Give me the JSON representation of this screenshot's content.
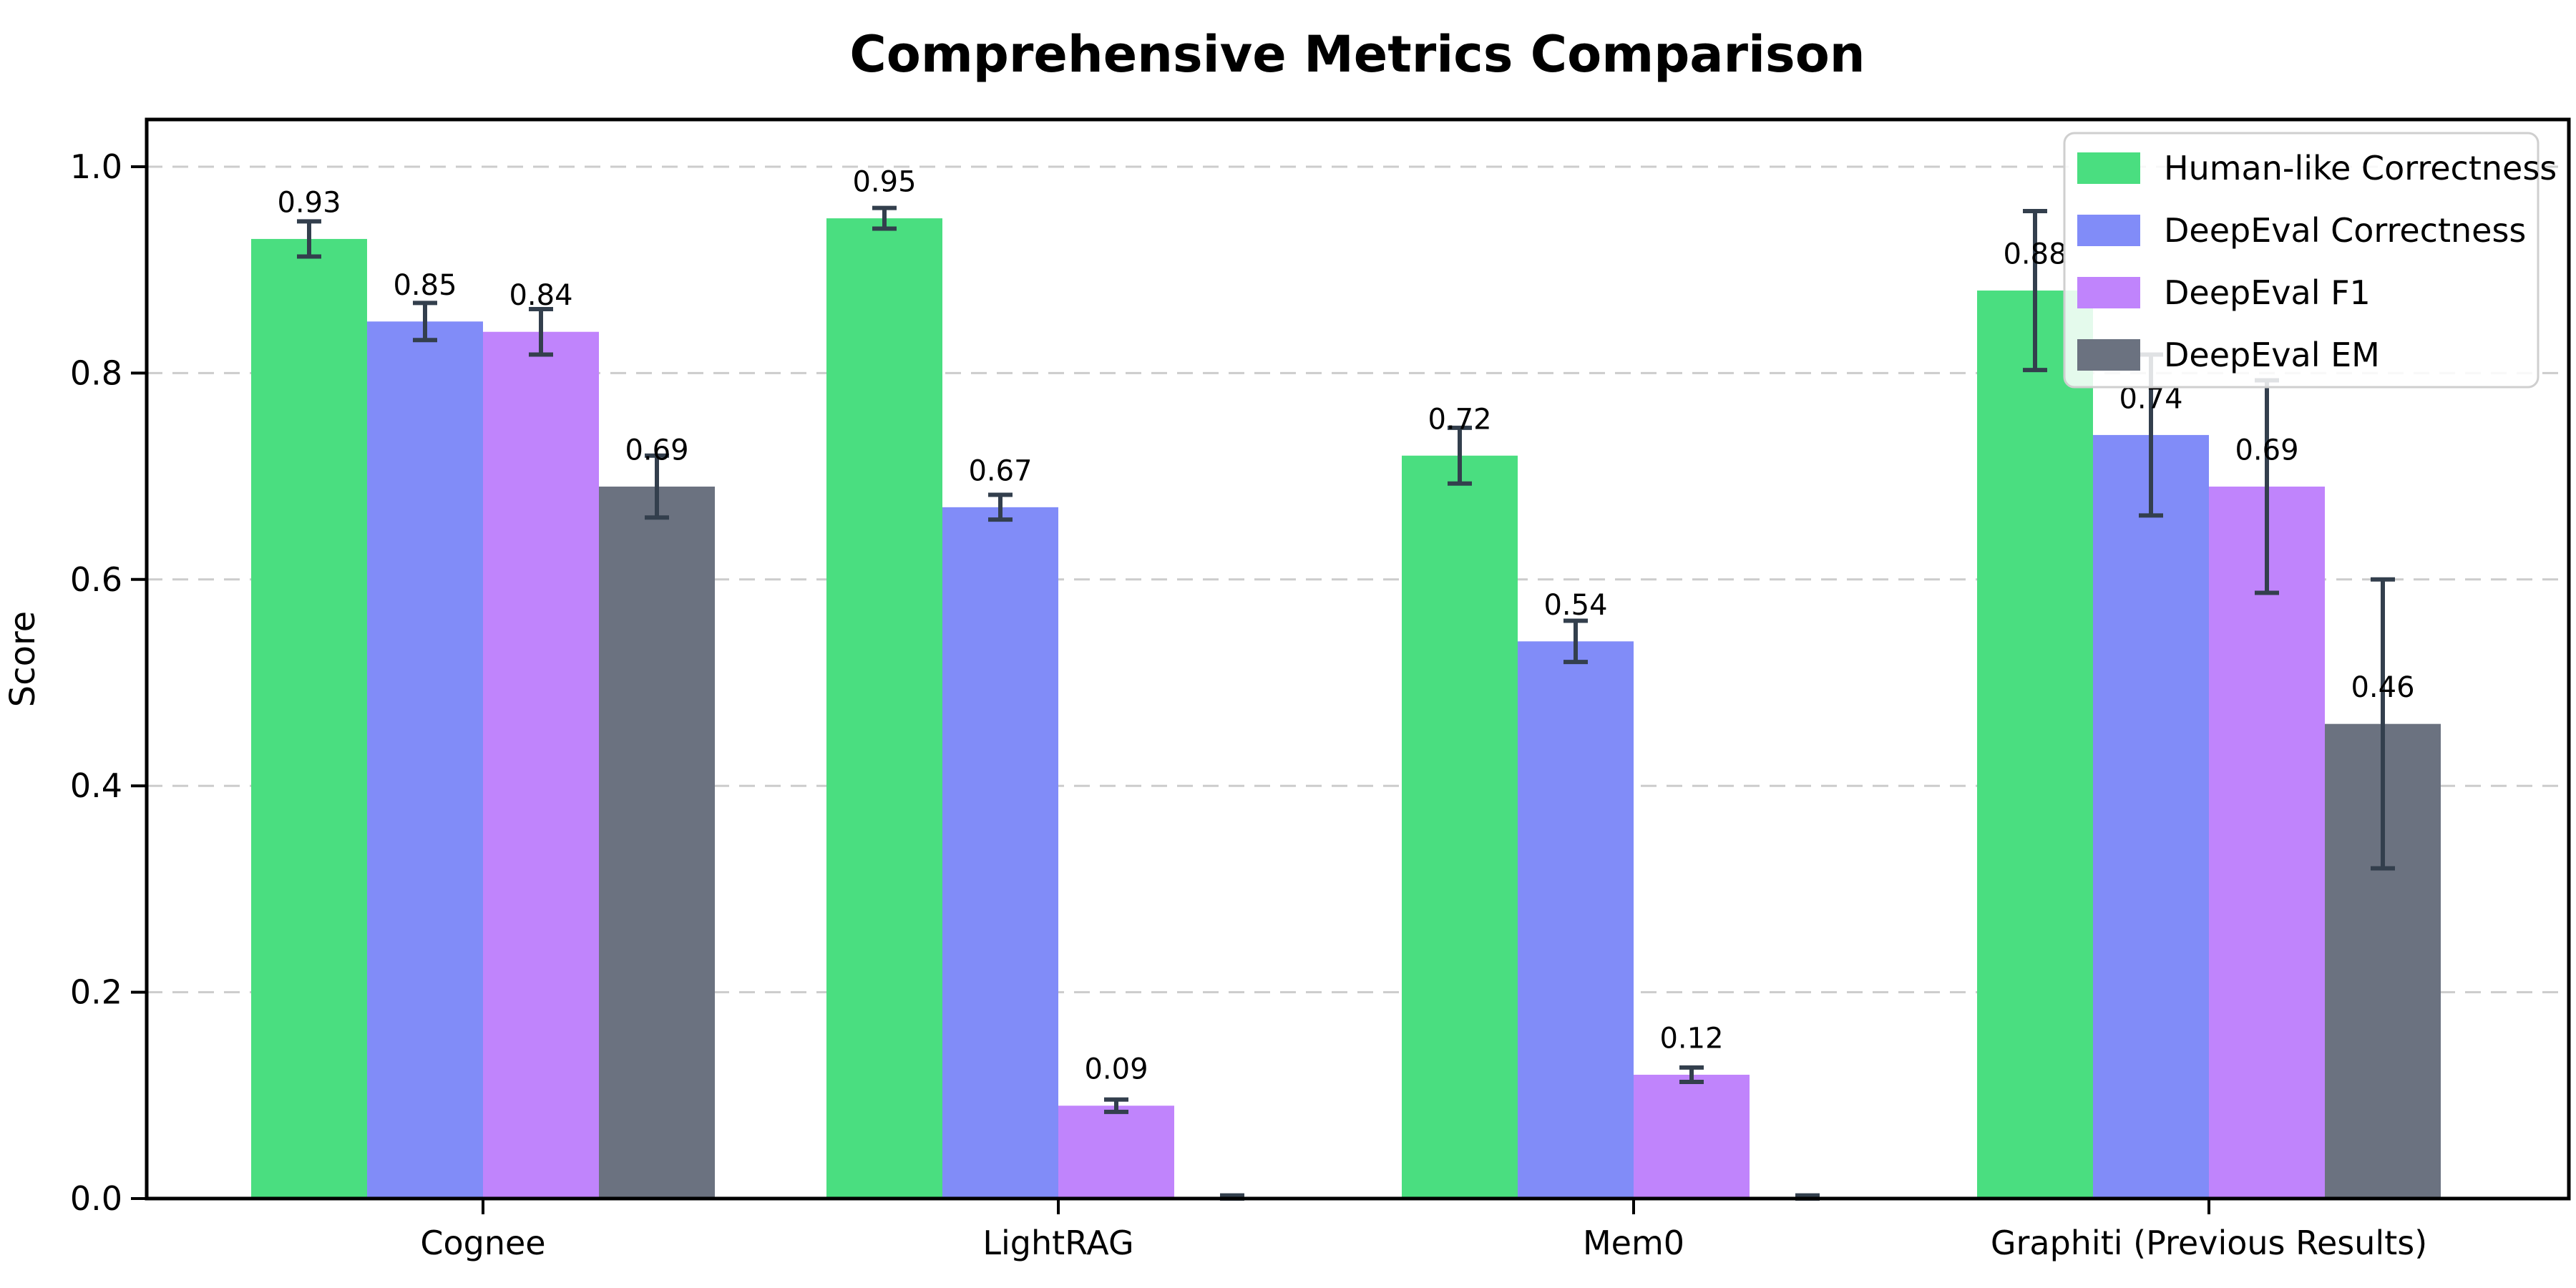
{
  "chart_data": {
    "type": "bar",
    "title": "Comprehensive Metrics Comparison",
    "ylabel": "Score",
    "xlabel": "",
    "categories": [
      "Cognee",
      "LightRAG",
      "Mem0",
      "Graphiti (Previous Results)"
    ],
    "series": [
      {
        "name": "Human-like Correctness",
        "color": "#4ade80",
        "values": [
          0.93,
          0.95,
          0.72,
          0.88
        ],
        "errors": [
          0.017,
          0.01,
          0.027,
          0.077
        ],
        "labels": [
          "0.93",
          "0.95",
          "0.72",
          "0.88"
        ]
      },
      {
        "name": "DeepEval Correctness",
        "color": "#818cf8",
        "values": [
          0.85,
          0.67,
          0.54,
          0.74
        ],
        "errors": [
          0.018,
          0.012,
          0.02,
          0.078
        ],
        "labels": [
          "0.85",
          "0.67",
          "0.54",
          "0.74"
        ]
      },
      {
        "name": "DeepEval F1",
        "color": "#c084fc",
        "values": [
          0.84,
          0.09,
          0.12,
          0.69
        ],
        "errors": [
          0.022,
          0.006,
          0.007,
          0.103
        ],
        "labels": [
          "0.84",
          "0.09",
          "0.12",
          "0.69"
        ]
      },
      {
        "name": "DeepEval EM",
        "color": "#6b7280",
        "values": [
          0.69,
          0.0,
          0.0,
          0.46
        ],
        "errors": [
          0.03,
          0.003,
          0.003,
          0.14
        ],
        "labels": [
          "0.69",
          "",
          "",
          "0.46"
        ]
      }
    ],
    "yticks": [
      {
        "value": 0.0,
        "label": "0.0"
      },
      {
        "value": 0.2,
        "label": "0.2"
      },
      {
        "value": 0.4,
        "label": "0.4"
      },
      {
        "value": 0.6,
        "label": "0.6"
      },
      {
        "value": 0.8,
        "label": "0.8"
      },
      {
        "value": 1.0,
        "label": "1.0"
      }
    ],
    "ylim": [
      0,
      1.046
    ],
    "grid": {
      "axis": "y",
      "style": "dashed",
      "color": "#cccccc"
    },
    "error_bar_color": "#333f4d",
    "frame_color": "#000000",
    "legend": {
      "position": "upper right",
      "entries": [
        "Human-like Correctness",
        "DeepEval Correctness",
        "DeepEval F1",
        "DeepEval EM"
      ]
    }
  }
}
